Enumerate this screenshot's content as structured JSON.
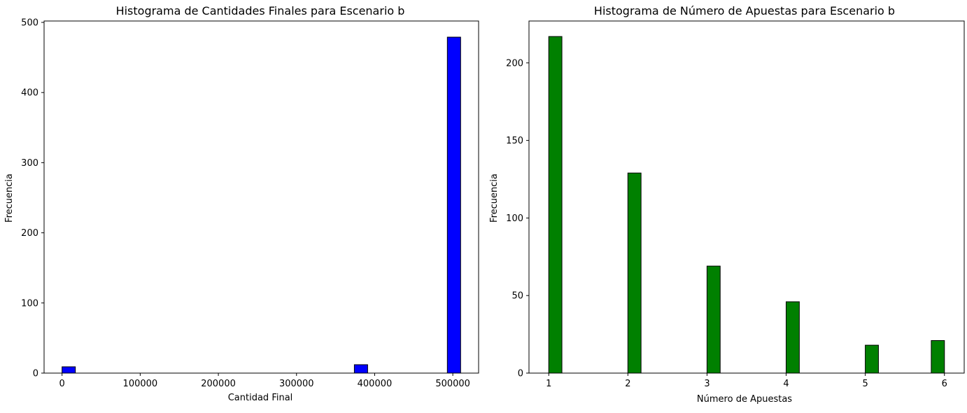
{
  "chart_data": [
    {
      "type": "bar",
      "title": "Histograma de Cantidades Finales para Escenario b",
      "xlabel": "Cantidad Final",
      "ylabel": "Frecuencia",
      "color": "#0000ff",
      "edgecolor": "#000000",
      "xlim": [
        -23000,
        533000
      ],
      "ylim": [
        0,
        502
      ],
      "xticks": [
        0,
        100000,
        200000,
        300000,
        400000,
        500000
      ],
      "xtick_labels": [
        "0",
        "100000",
        "200000",
        "300000",
        "400000",
        "500000"
      ],
      "yticks": [
        0,
        100,
        200,
        300,
        400,
        500
      ],
      "ytick_labels": [
        "0",
        "100",
        "200",
        "300",
        "400",
        "500"
      ],
      "bin_width": 17000,
      "bins": [
        {
          "x": 8500,
          "value": 9
        },
        {
          "x": 382500,
          "value": 12
        },
        {
          "x": 501500,
          "value": 479
        }
      ],
      "grid": false,
      "legend": "none"
    },
    {
      "type": "bar",
      "title": "Histograma de Número de Apuestas para Escenario b",
      "xlabel": "Número de Apuestas",
      "ylabel": "Frecuencia",
      "color": "#008000",
      "edgecolor": "#000000",
      "xlim": [
        0.75,
        6.25
      ],
      "ylim": [
        0,
        227
      ],
      "xticks": [
        1,
        2,
        3,
        4,
        5,
        6
      ],
      "xtick_labels": [
        "1",
        "2",
        "3",
        "4",
        "5",
        "6"
      ],
      "yticks": [
        0,
        50,
        100,
        150,
        200
      ],
      "ytick_labels": [
        "0",
        "50",
        "100",
        "150",
        "200"
      ],
      "bin_width": 0.1667,
      "bins": [
        {
          "x": 1.083,
          "value": 217
        },
        {
          "x": 2.083,
          "value": 129
        },
        {
          "x": 3.083,
          "value": 69
        },
        {
          "x": 4.083,
          "value": 46
        },
        {
          "x": 5.083,
          "value": 18
        },
        {
          "x": 5.917,
          "value": 21
        }
      ],
      "grid": false,
      "legend": "none"
    }
  ]
}
